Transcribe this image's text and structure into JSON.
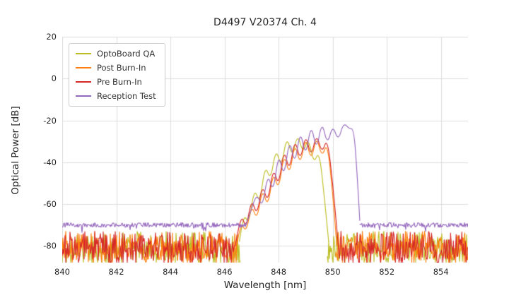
{
  "chart_data": {
    "type": "line",
    "title": "D4497 V20374 Ch. 4",
    "xlabel": "Wavelength [nm]",
    "ylabel": "Optical Power [dB]",
    "xlim": [
      840,
      855
    ],
    "ylim": [
      -88,
      20
    ],
    "xticks": [
      840,
      842,
      844,
      846,
      848,
      850,
      852,
      854
    ],
    "yticks": [
      20,
      0,
      -20,
      -40,
      -60,
      -80
    ],
    "grid": true,
    "grid_color": "#dcdcdc",
    "legend_position": "upper-left",
    "series": [
      {
        "name": "OptoBoard QA",
        "color": "#bcbd22",
        "noise_regions": [
          {
            "x0": 840.0,
            "x1": 846.6,
            "mean": -80,
            "amp": 7,
            "spike_p": 0.3,
            "spike": 9
          },
          {
            "x0": 849.8,
            "x1": 855.0,
            "mean": -80,
            "amp": 7,
            "spike_p": 0.3,
            "spike": 9
          }
        ],
        "signal": [
          [
            846.55,
            -78
          ],
          [
            846.7,
            -64
          ],
          [
            846.9,
            -70
          ],
          [
            847.1,
            -52
          ],
          [
            847.3,
            -60
          ],
          [
            847.5,
            -41
          ],
          [
            847.7,
            -49
          ],
          [
            847.9,
            -33
          ],
          [
            848.1,
            -43
          ],
          [
            848.3,
            -27
          ],
          [
            848.5,
            -38
          ],
          [
            848.7,
            -26
          ],
          [
            848.9,
            -36
          ],
          [
            849.1,
            -28
          ],
          [
            849.3,
            -41
          ],
          [
            849.5,
            -34
          ],
          [
            849.7,
            -58
          ],
          [
            849.85,
            -78
          ]
        ]
      },
      {
        "name": "Post Burn-In",
        "color": "#ff7f0e",
        "noise_regions": [
          {
            "x0": 840.0,
            "x1": 846.5,
            "mean": -80,
            "amp": 7,
            "spike_p": 0.3,
            "spike": 9
          },
          {
            "x0": 850.1,
            "x1": 855.0,
            "mean": -80,
            "amp": 7,
            "spike_p": 0.3,
            "spike": 9
          }
        ],
        "signal": [
          [
            846.45,
            -80
          ],
          [
            846.6,
            -68
          ],
          [
            846.8,
            -74
          ],
          [
            847.0,
            -60
          ],
          [
            847.2,
            -68
          ],
          [
            847.4,
            -52
          ],
          [
            847.6,
            -62
          ],
          [
            847.8,
            -44
          ],
          [
            848.0,
            -54
          ],
          [
            848.2,
            -35
          ],
          [
            848.4,
            -47
          ],
          [
            848.6,
            -30
          ],
          [
            848.8,
            -42
          ],
          [
            849.0,
            -27
          ],
          [
            849.2,
            -40
          ],
          [
            849.4,
            -27
          ],
          [
            849.6,
            -38
          ],
          [
            849.8,
            -30
          ],
          [
            850.0,
            -55
          ],
          [
            850.15,
            -80
          ]
        ]
      },
      {
        "name": "Pre Burn-In",
        "color": "#d62728",
        "noise_regions": [
          {
            "x0": 840.0,
            "x1": 846.4,
            "mean": -80,
            "amp": 7,
            "spike_p": 0.3,
            "spike": 9
          },
          {
            "x0": 850.2,
            "x1": 855.0,
            "mean": -80,
            "amp": 7,
            "spike_p": 0.3,
            "spike": 9
          }
        ],
        "signal": [
          [
            846.4,
            -80
          ],
          [
            846.6,
            -64
          ],
          [
            846.8,
            -72
          ],
          [
            847.0,
            -57
          ],
          [
            847.2,
            -66
          ],
          [
            847.4,
            -50
          ],
          [
            847.6,
            -60
          ],
          [
            847.8,
            -42
          ],
          [
            848.0,
            -52
          ],
          [
            848.2,
            -33
          ],
          [
            848.4,
            -45
          ],
          [
            848.6,
            -28
          ],
          [
            848.8,
            -40
          ],
          [
            849.0,
            -26
          ],
          [
            849.2,
            -38
          ],
          [
            849.4,
            -26
          ],
          [
            849.6,
            -36
          ],
          [
            849.8,
            -28
          ],
          [
            850.0,
            -50
          ],
          [
            850.2,
            -79
          ]
        ]
      },
      {
        "name": "Reception Test",
        "color": "#9467bd",
        "noise_regions": [
          {
            "x0": 840.0,
            "x1": 846.8,
            "mean": -70,
            "amp": 1.1,
            "spike_p": 0.08,
            "spike": 3
          },
          {
            "x0": 851.0,
            "x1": 855.0,
            "mean": -70,
            "amp": 1.1,
            "spike_p": 0.08,
            "spike": 3
          }
        ],
        "signal": [
          [
            846.8,
            -70
          ],
          [
            847.0,
            -62
          ],
          [
            847.2,
            -55
          ],
          [
            847.4,
            -62
          ],
          [
            847.6,
            -45
          ],
          [
            847.8,
            -55
          ],
          [
            848.0,
            -35
          ],
          [
            848.2,
            -48
          ],
          [
            848.4,
            -28
          ],
          [
            848.6,
            -42
          ],
          [
            848.8,
            -24
          ],
          [
            849.0,
            -38
          ],
          [
            849.2,
            -21
          ],
          [
            849.4,
            -35
          ],
          [
            849.6,
            -20
          ],
          [
            849.8,
            -32
          ],
          [
            850.0,
            -22
          ],
          [
            850.2,
            -30
          ],
          [
            850.4,
            -21
          ],
          [
            850.6,
            -24
          ],
          [
            850.78,
            -24
          ],
          [
            850.9,
            -45
          ],
          [
            851.0,
            -68
          ]
        ]
      }
    ]
  }
}
